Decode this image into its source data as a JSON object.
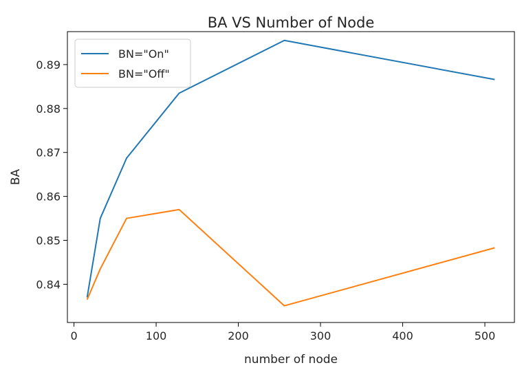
{
  "chart_data": {
    "type": "line",
    "title": "BA VS Number of Node",
    "xlabel": "number of node",
    "ylabel": "BA",
    "xlim": [
      -8,
      536
    ],
    "ylim": [
      0.8313,
      0.8975
    ],
    "xticks": [
      0,
      100,
      200,
      300,
      400,
      500
    ],
    "xtick_labels": [
      "0",
      "100",
      "200",
      "300",
      "400",
      "500"
    ],
    "yticks": [
      0.84,
      0.85,
      0.86,
      0.87,
      0.88,
      0.89
    ],
    "ytick_labels": [
      "0.84",
      "0.85",
      "0.86",
      "0.87",
      "0.88",
      "0.89"
    ],
    "grid": false,
    "legend_position": "top-left",
    "series": [
      {
        "name": "BN=\"On\"",
        "color": "#1f77b4",
        "x": [
          16,
          32,
          64,
          128,
          256,
          512
        ],
        "y": [
          0.837,
          0.855,
          0.8687,
          0.8835,
          0.8955,
          0.8866
        ]
      },
      {
        "name": "BN=\"Off\"",
        "color": "#ff7f0e",
        "x": [
          16,
          32,
          64,
          128,
          256,
          512
        ],
        "y": [
          0.8365,
          0.8435,
          0.855,
          0.857,
          0.8351,
          0.8483
        ]
      }
    ]
  }
}
